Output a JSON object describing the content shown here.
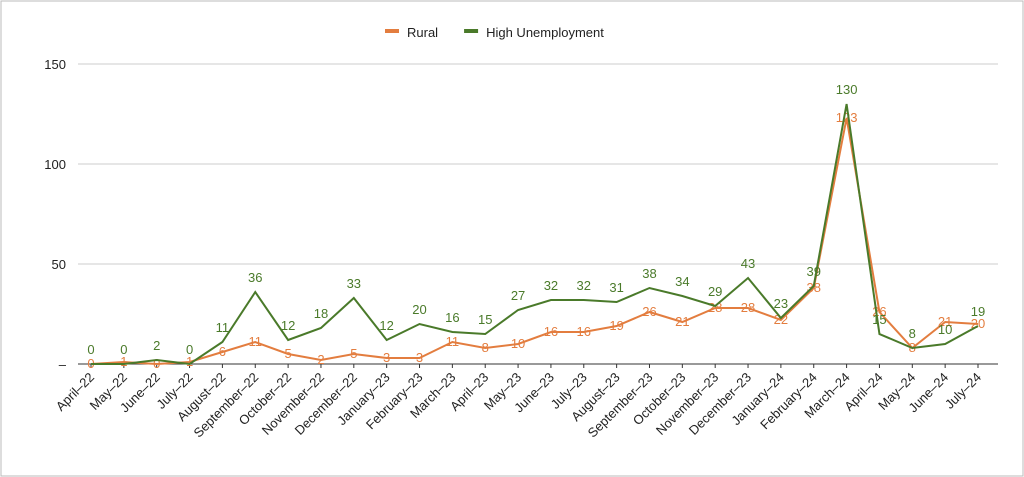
{
  "chart_data": {
    "type": "line",
    "categories": [
      "April–22",
      "May–22",
      "June–22",
      "July–22",
      "August–22",
      "September–22",
      "October–22",
      "November–22",
      "December–22",
      "January–23",
      "February–23",
      "March–23",
      "April–23",
      "May–23",
      "June–23",
      "July–23",
      "August–23",
      "September–23",
      "October–23",
      "November–23",
      "December–23",
      "January–24",
      "February–24",
      "March–24",
      "April–24",
      "May–24",
      "June–24",
      "July–24"
    ],
    "series": [
      {
        "name": "Rural",
        "color": "#e37d3f",
        "values": [
          0,
          1,
          0,
          1,
          6,
          11,
          5,
          2,
          5,
          3,
          3,
          11,
          8,
          10,
          16,
          16,
          19,
          26,
          21,
          28,
          28,
          22,
          38,
          123,
          26,
          8,
          21,
          20
        ]
      },
      {
        "name": "High Unemployment",
        "color": "#4a7a2a",
        "values": [
          0,
          0,
          2,
          0,
          11,
          36,
          12,
          18,
          33,
          12,
          20,
          16,
          15,
          27,
          32,
          32,
          31,
          38,
          34,
          29,
          43,
          23,
          39,
          130,
          15,
          8,
          10,
          19
        ]
      }
    ],
    "ylim": [
      0,
      150
    ],
    "yticks": [
      {
        "value": 0,
        "label": "–"
      },
      50,
      100,
      150
    ],
    "grid": true,
    "legend": "top"
  }
}
